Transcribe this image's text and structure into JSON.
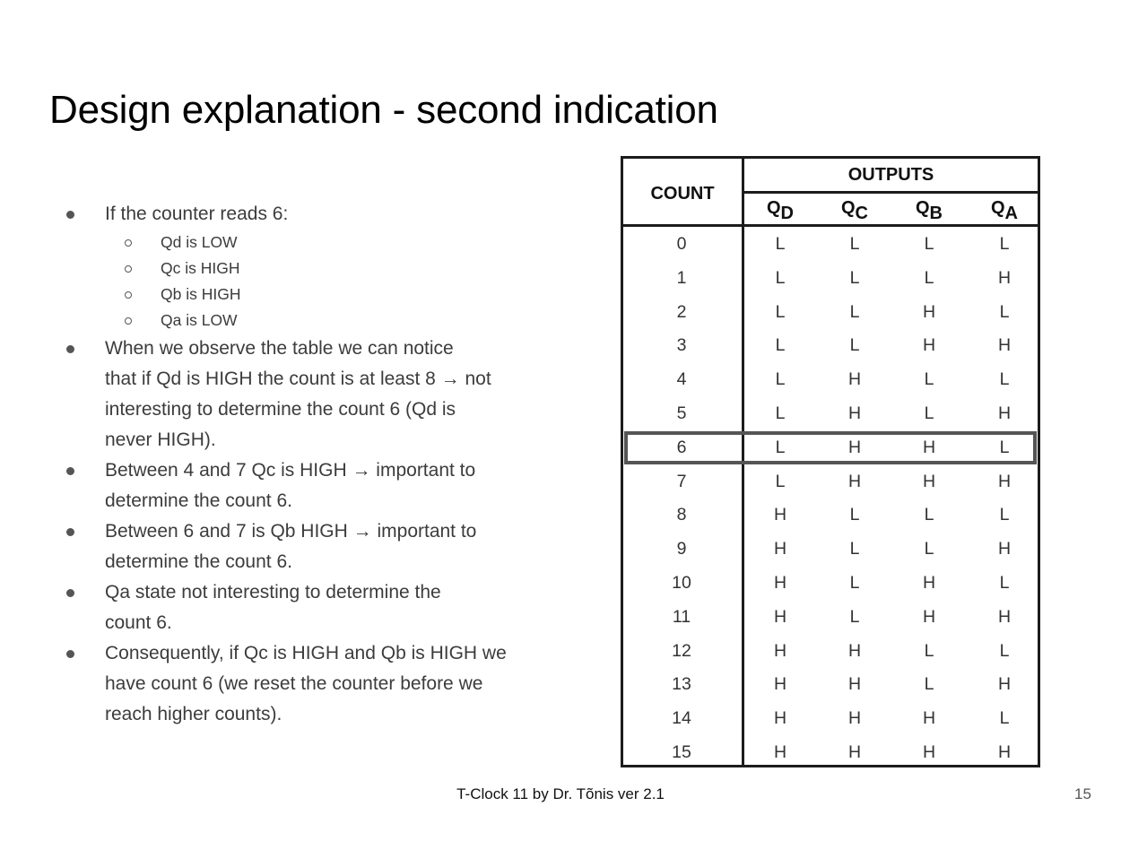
{
  "title": "Design explanation - second indication",
  "bullets": [
    {
      "text": "If the counter reads 6:",
      "sub": [
        "Qd is LOW",
        "Qc is HIGH",
        "Qb is HIGH",
        "Qa is LOW"
      ]
    },
    {
      "lines": [
        "When we observe the table we can notice",
        "that if Qd is HIGH the count is at least 8 → not",
        "interesting to determine the count 6 (Qd is",
        "never HIGH)."
      ]
    },
    {
      "lines": [
        "Between 4 and 7 Qc is HIGH → important to",
        "determine the count 6."
      ]
    },
    {
      "lines": [
        "Between 6 and 7 is Qb HIGH → important to",
        "determine the count 6."
      ]
    },
    {
      "lines": [
        "Qa state not interesting to determine the",
        "count 6."
      ]
    },
    {
      "lines": [
        "Consequently, if Qc is HIGH and Qb is HIGH we",
        "have count 6 (we reset the counter before we",
        "reach higher counts)."
      ]
    }
  ],
  "table": {
    "count_header": "COUNT",
    "outputs_header": "OUTPUTS",
    "columns": [
      {
        "base": "Q",
        "sub": "D"
      },
      {
        "base": "Q",
        "sub": "C"
      },
      {
        "base": "Q",
        "sub": "B"
      },
      {
        "base": "Q",
        "sub": "A"
      }
    ],
    "rows": [
      {
        "count": "0",
        "values": [
          "L",
          "L",
          "L",
          "L"
        ]
      },
      {
        "count": "1",
        "values": [
          "L",
          "L",
          "L",
          "H"
        ]
      },
      {
        "count": "2",
        "values": [
          "L",
          "L",
          "H",
          "L"
        ]
      },
      {
        "count": "3",
        "values": [
          "L",
          "L",
          "H",
          "H"
        ]
      },
      {
        "count": "4",
        "values": [
          "L",
          "H",
          "L",
          "L"
        ]
      },
      {
        "count": "5",
        "values": [
          "L",
          "H",
          "L",
          "H"
        ]
      },
      {
        "count": "6",
        "values": [
          "L",
          "H",
          "H",
          "L"
        ]
      },
      {
        "count": "7",
        "values": [
          "L",
          "H",
          "H",
          "H"
        ]
      },
      {
        "count": "8",
        "values": [
          "H",
          "L",
          "L",
          "L"
        ]
      },
      {
        "count": "9",
        "values": [
          "H",
          "L",
          "L",
          "H"
        ]
      },
      {
        "count": "10",
        "values": [
          "H",
          "L",
          "H",
          "L"
        ]
      },
      {
        "count": "11",
        "values": [
          "H",
          "L",
          "H",
          "H"
        ]
      },
      {
        "count": "12",
        "values": [
          "H",
          "H",
          "L",
          "L"
        ]
      },
      {
        "count": "13",
        "values": [
          "H",
          "H",
          "L",
          "H"
        ]
      },
      {
        "count": "14",
        "values": [
          "H",
          "H",
          "H",
          "L"
        ]
      },
      {
        "count": "15",
        "values": [
          "H",
          "H",
          "H",
          "H"
        ]
      }
    ],
    "highlighted_count": "6"
  },
  "footer": "T-Clock 11 by Dr. Tõnis ver 2.1",
  "page_number": "15"
}
